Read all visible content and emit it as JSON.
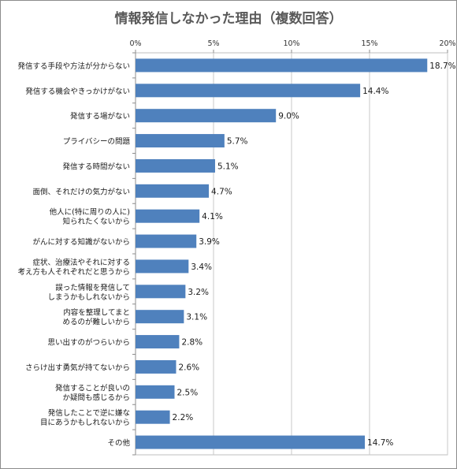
{
  "chart_data": {
    "type": "bar",
    "orientation": "horizontal",
    "title": "情報発信しなかった理由（複数回答）",
    "xlim": [
      0,
      20
    ],
    "x_ticks": [
      "0%",
      "5%",
      "10%",
      "15%",
      "20%"
    ],
    "x_tick_values": [
      0,
      5,
      10,
      15,
      20
    ],
    "x_axis_position": "top",
    "grid": true,
    "legend": "none",
    "bar_color": "#4f81bd",
    "categories": [
      [
        "発信する手段や方法が分からない"
      ],
      [
        "発信する機会やきっかけがない"
      ],
      [
        "発信する場がない"
      ],
      [
        "プライバシーの問題"
      ],
      [
        "発信する時間がない"
      ],
      [
        "面倒、それだけの気力がない"
      ],
      [
        "他人に(特に周りの人に)",
        "知られたくないから"
      ],
      [
        "がんに対する知識がないから"
      ],
      [
        "症状、治療法やそれに対する",
        "考え方も人それぞれだと思うから"
      ],
      [
        "誤った情報を発信して",
        "しまうかもしれないから"
      ],
      [
        "内容を整理してまと",
        "めるのが難しいから"
      ],
      [
        "思い出すのがつらいから"
      ],
      [
        "さらけ出す勇気が持てないから"
      ],
      [
        "発信することが良いの",
        "か疑問も感じるから"
      ],
      [
        "発信したことで逆に嫌な",
        "目にあうかもしれないから"
      ],
      [
        "その他"
      ]
    ],
    "values": [
      18.7,
      14.4,
      9.0,
      5.7,
      5.1,
      4.7,
      4.1,
      3.9,
      3.4,
      3.2,
      3.1,
      2.8,
      2.6,
      2.5,
      2.2,
      14.7
    ],
    "value_labels": [
      "18.7%",
      "14.4%",
      "9.0%",
      "5.7%",
      "5.1%",
      "4.7%",
      "4.1%",
      "3.9%",
      "3.4%",
      "3.2%",
      "3.1%",
      "2.8%",
      "2.6%",
      "2.5%",
      "2.2%",
      "14.7%"
    ]
  }
}
